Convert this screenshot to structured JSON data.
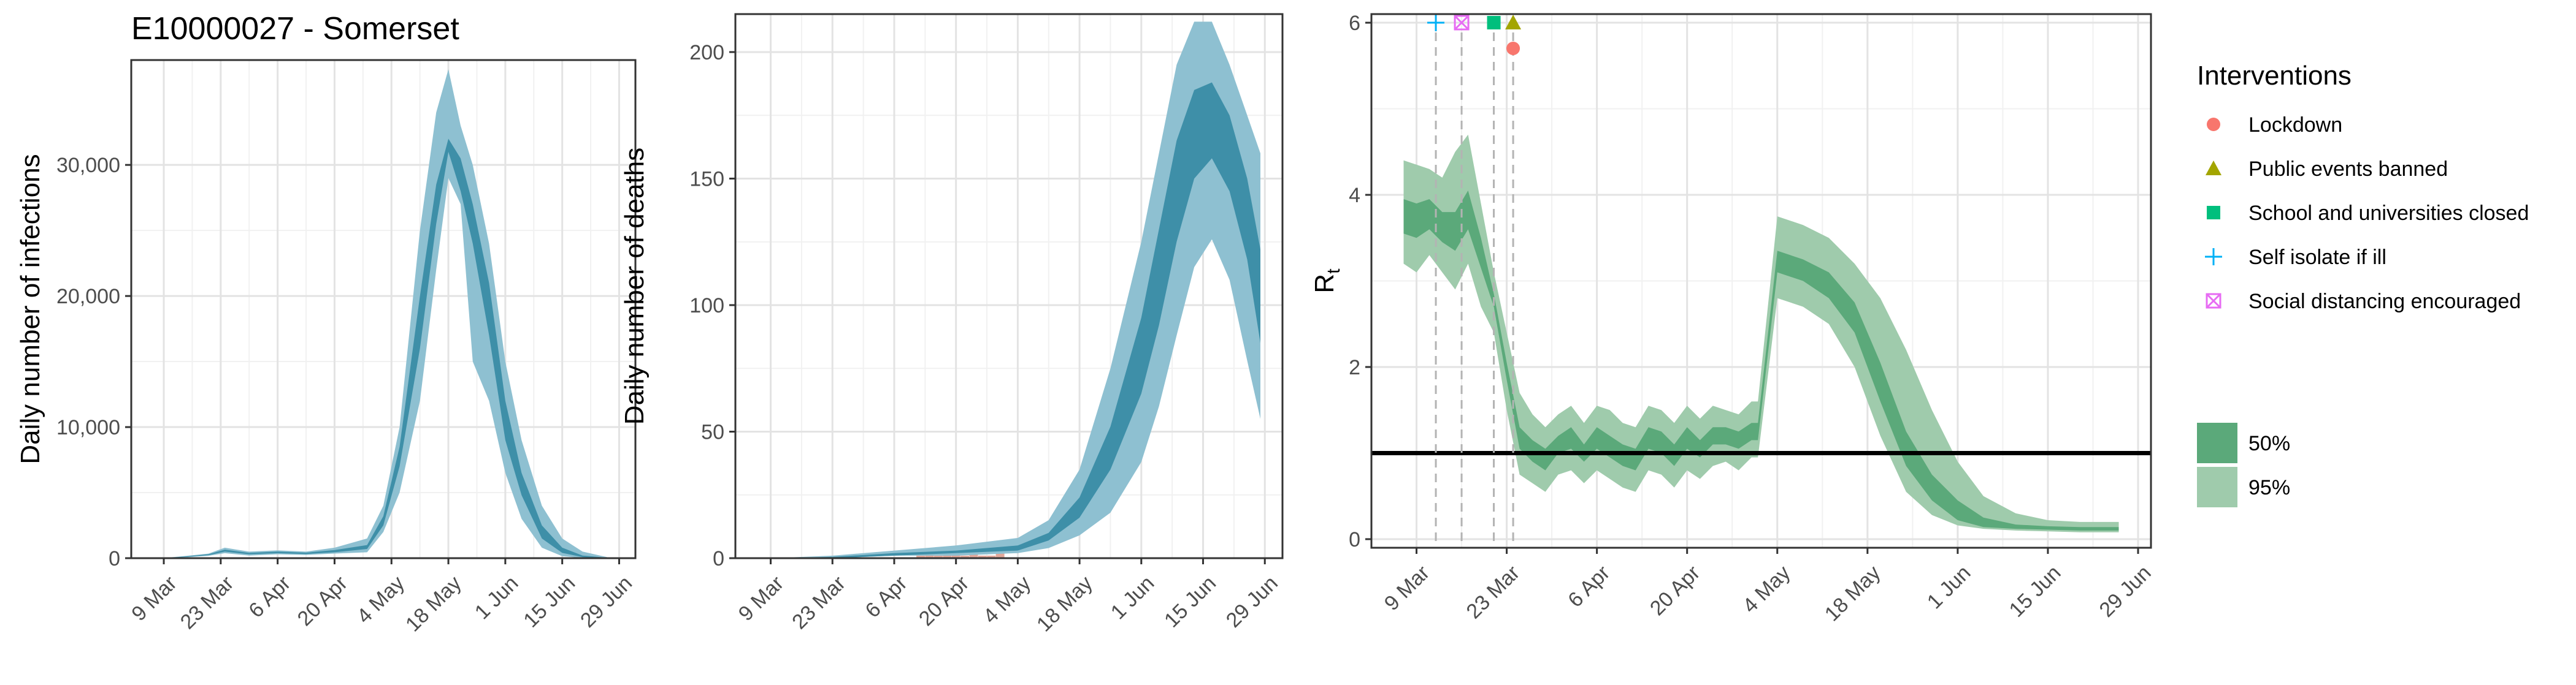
{
  "title": "E10000027 - Somerset",
  "colors": {
    "blue_95": "#8ec0d1",
    "blue_50": "#3e8fa8",
    "green_95": "#9fcbac",
    "green_50": "#5ba97a",
    "lockdown": "#f8766d",
    "public_events": "#a3a500",
    "schools": "#00bf7d",
    "self_isolate": "#00b0f6",
    "social_distancing": "#e76bf3",
    "observed_deaths_bar": "#e2a89a"
  },
  "chart_data": [
    {
      "type": "area",
      "ylabel": "Daily number of infections",
      "ylim": [
        0,
        38000
      ],
      "y_ticks": [
        0,
        10000,
        20000,
        30000
      ],
      "y_tick_labels": [
        "0",
        "10,000",
        "20,000",
        "30,000"
      ],
      "x_range": [
        "2020-03-01",
        "2020-07-03"
      ],
      "x_ticks": [
        "2020-03-09",
        "2020-03-23",
        "2020-04-06",
        "2020-04-20",
        "2020-05-04",
        "2020-05-18",
        "2020-06-01",
        "2020-06-15",
        "2020-06-29"
      ],
      "x_tick_labels": [
        "9 Mar",
        "23 Mar",
        "6 Apr",
        "20 Apr",
        "4 May",
        "18 May",
        "1 Jun",
        "15 Jun",
        "29 Jun"
      ],
      "grid": true,
      "series": [
        {
          "name": "95%",
          "x": [
            "2020-03-09",
            "2020-03-14",
            "2020-03-20",
            "2020-03-24",
            "2020-03-30",
            "2020-04-06",
            "2020-04-13",
            "2020-04-20",
            "2020-04-28",
            "2020-05-02",
            "2020-05-06",
            "2020-05-11",
            "2020-05-15",
            "2020-05-18",
            "2020-05-21",
            "2020-05-24",
            "2020-05-28",
            "2020-06-01",
            "2020-06-05",
            "2020-06-10",
            "2020-06-15",
            "2020-06-20",
            "2020-06-26"
          ],
          "lower": [
            0,
            50,
            180,
            380,
            200,
            300,
            250,
            350,
            450,
            2000,
            5000,
            12000,
            22000,
            29000,
            27000,
            15000,
            12000,
            6500,
            3000,
            800,
            150,
            20,
            0
          ],
          "upper": [
            20,
            160,
            350,
            800,
            500,
            600,
            500,
            800,
            1500,
            4000,
            10000,
            25000,
            34000,
            37300,
            33000,
            30000,
            24000,
            15000,
            9000,
            4000,
            1500,
            500,
            80
          ]
        },
        {
          "name": "50%",
          "x": [
            "2020-03-09",
            "2020-03-14",
            "2020-03-20",
            "2020-03-24",
            "2020-03-30",
            "2020-04-06",
            "2020-04-13",
            "2020-04-20",
            "2020-04-28",
            "2020-05-02",
            "2020-05-06",
            "2020-05-11",
            "2020-05-15",
            "2020-05-18",
            "2020-05-21",
            "2020-05-24",
            "2020-05-28",
            "2020-06-01",
            "2020-06-05",
            "2020-06-10",
            "2020-06-15",
            "2020-06-20",
            "2020-06-26"
          ],
          "lower": [
            5,
            80,
            230,
            500,
            300,
            380,
            320,
            450,
            700,
            2500,
            7000,
            16000,
            25500,
            31000,
            28000,
            24000,
            17000,
            9000,
            4800,
            1500,
            400,
            80,
            10
          ],
          "upper": [
            12,
            120,
            300,
            650,
            400,
            500,
            420,
            620,
            1000,
            3200,
            8500,
            20000,
            28500,
            32000,
            30500,
            27000,
            21000,
            12000,
            6500,
            2500,
            800,
            200,
            40
          ]
        }
      ]
    },
    {
      "type": "area",
      "ylabel": "Daily number of deaths",
      "ylim": [
        0,
        215
      ],
      "y_ticks": [
        0,
        50,
        100,
        150,
        200
      ],
      "y_tick_labels": [
        "0",
        "50",
        "100",
        "150",
        "200"
      ],
      "x_range": [
        "2020-03-01",
        "2020-07-03"
      ],
      "x_ticks": [
        "2020-03-09",
        "2020-03-23",
        "2020-04-06",
        "2020-04-20",
        "2020-05-04",
        "2020-05-18",
        "2020-06-01",
        "2020-06-15",
        "2020-06-29"
      ],
      "x_tick_labels": [
        "9 Mar",
        "23 Mar",
        "6 Apr",
        "20 Apr",
        "4 May",
        "18 May",
        "1 Jun",
        "15 Jun",
        "29 Jun"
      ],
      "grid": true,
      "observed": {
        "x": [
          "2020-04-12",
          "2020-04-14",
          "2020-04-16",
          "2020-04-18",
          "2020-04-20",
          "2020-04-22",
          "2020-04-24",
          "2020-04-26",
          "2020-04-28",
          "2020-04-30"
        ],
        "values": [
          1,
          2,
          1,
          2,
          2,
          1,
          2,
          1,
          1,
          2
        ]
      },
      "series": [
        {
          "name": "95%",
          "x": [
            "2020-03-09",
            "2020-03-23",
            "2020-04-06",
            "2020-04-20",
            "2020-05-04",
            "2020-05-11",
            "2020-05-18",
            "2020-05-25",
            "2020-06-01",
            "2020-06-05",
            "2020-06-09",
            "2020-06-13",
            "2020-06-17",
            "2020-06-21",
            "2020-06-25",
            "2020-06-28"
          ],
          "lower": [
            0,
            0,
            1,
            1,
            2,
            4,
            9,
            18,
            38,
            60,
            88,
            115,
            126,
            110,
            78,
            55
          ],
          "upper": [
            0,
            1,
            3,
            5,
            8,
            15,
            35,
            75,
            125,
            160,
            195,
            212,
            212,
            195,
            175,
            160
          ]
        },
        {
          "name": "50%",
          "x": [
            "2020-03-09",
            "2020-03-23",
            "2020-04-06",
            "2020-04-20",
            "2020-05-04",
            "2020-05-11",
            "2020-05-18",
            "2020-05-25",
            "2020-06-01",
            "2020-06-05",
            "2020-06-09",
            "2020-06-13",
            "2020-06-17",
            "2020-06-21",
            "2020-06-25",
            "2020-06-28"
          ],
          "lower": [
            0,
            0,
            1,
            2,
            3,
            7,
            16,
            35,
            65,
            92,
            125,
            150,
            158,
            145,
            118,
            85
          ],
          "upper": [
            0,
            0.5,
            2,
            3,
            5,
            10,
            24,
            52,
            95,
            130,
            165,
            185,
            188,
            175,
            150,
            122
          ]
        }
      ]
    },
    {
      "type": "area",
      "ylabel": "R",
      "ylabel_subscript": "t",
      "ylim": [
        -0.1,
        6.1
      ],
      "y_ticks": [
        0,
        2,
        4,
        6
      ],
      "y_tick_labels": [
        "0",
        "2",
        "4",
        "6"
      ],
      "x_range": [
        "2020-03-02",
        "2020-07-01"
      ],
      "x_ticks": [
        "2020-03-09",
        "2020-03-23",
        "2020-04-06",
        "2020-04-20",
        "2020-05-04",
        "2020-05-18",
        "2020-06-01",
        "2020-06-15",
        "2020-06-29"
      ],
      "x_tick_labels": [
        "9 Mar",
        "23 Mar",
        "6 Apr",
        "20 Apr",
        "4 May",
        "18 May",
        "1 Jun",
        "15 Jun",
        "29 Jun"
      ],
      "grid": true,
      "hline": 1,
      "series": [
        {
          "name": "95%",
          "x": [
            "2020-03-07",
            "2020-03-09",
            "2020-03-11",
            "2020-03-13",
            "2020-03-15",
            "2020-03-17",
            "2020-03-19",
            "2020-03-21",
            "2020-03-23",
            "2020-03-25",
            "2020-03-27",
            "2020-03-29",
            "2020-03-31",
            "2020-04-02",
            "2020-04-04",
            "2020-04-06",
            "2020-04-08",
            "2020-04-10",
            "2020-04-12",
            "2020-04-14",
            "2020-04-16",
            "2020-04-18",
            "2020-04-20",
            "2020-04-22",
            "2020-04-24",
            "2020-04-26",
            "2020-04-28",
            "2020-04-30",
            "2020-05-01",
            "2020-05-04",
            "2020-05-08",
            "2020-05-12",
            "2020-05-16",
            "2020-05-20",
            "2020-05-24",
            "2020-05-28",
            "2020-06-01",
            "2020-06-05",
            "2020-06-10",
            "2020-06-15",
            "2020-06-20",
            "2020-06-26"
          ],
          "lower": [
            3.2,
            3.1,
            3.3,
            3.1,
            2.9,
            3.2,
            2.7,
            2.4,
            1.5,
            0.75,
            0.65,
            0.55,
            0.75,
            0.8,
            0.65,
            0.8,
            0.7,
            0.6,
            0.55,
            0.8,
            0.75,
            0.6,
            0.8,
            0.7,
            0.85,
            0.9,
            0.8,
            0.95,
            0.95,
            2.8,
            2.7,
            2.5,
            2.0,
            1.2,
            0.55,
            0.28,
            0.16,
            0.12,
            0.1,
            0.09,
            0.08,
            0.08
          ],
          "upper": [
            4.4,
            4.35,
            4.3,
            4.2,
            4.5,
            4.7,
            3.9,
            3.1,
            2.4,
            1.7,
            1.45,
            1.3,
            1.45,
            1.55,
            1.35,
            1.55,
            1.5,
            1.35,
            1.3,
            1.55,
            1.5,
            1.35,
            1.55,
            1.4,
            1.55,
            1.5,
            1.45,
            1.6,
            1.6,
            3.75,
            3.65,
            3.5,
            3.2,
            2.8,
            2.2,
            1.5,
            0.9,
            0.5,
            0.3,
            0.22,
            0.2,
            0.2
          ]
        },
        {
          "name": "50%",
          "x": [
            "2020-03-07",
            "2020-03-09",
            "2020-03-11",
            "2020-03-13",
            "2020-03-15",
            "2020-03-17",
            "2020-03-19",
            "2020-03-21",
            "2020-03-23",
            "2020-03-25",
            "2020-03-27",
            "2020-03-29",
            "2020-03-31",
            "2020-04-02",
            "2020-04-04",
            "2020-04-06",
            "2020-04-08",
            "2020-04-10",
            "2020-04-12",
            "2020-04-14",
            "2020-04-16",
            "2020-04-18",
            "2020-04-20",
            "2020-04-22",
            "2020-04-24",
            "2020-04-26",
            "2020-04-28",
            "2020-04-30",
            "2020-05-01",
            "2020-05-04",
            "2020-05-08",
            "2020-05-12",
            "2020-05-16",
            "2020-05-20",
            "2020-05-24",
            "2020-05-28",
            "2020-06-01",
            "2020-06-05",
            "2020-06-10",
            "2020-06-15",
            "2020-06-20",
            "2020-06-26"
          ],
          "lower": [
            3.55,
            3.5,
            3.6,
            3.45,
            3.35,
            3.6,
            3.15,
            2.7,
            1.85,
            1.05,
            0.9,
            0.8,
            1.0,
            1.05,
            0.9,
            1.05,
            0.95,
            0.85,
            0.8,
            1.05,
            1.0,
            0.85,
            1.05,
            0.95,
            1.1,
            1.1,
            1.05,
            1.15,
            1.15,
            3.1,
            3.0,
            2.8,
            2.4,
            1.6,
            0.85,
            0.45,
            0.22,
            0.14,
            0.12,
            0.11,
            0.1,
            0.1
          ],
          "upper": [
            3.95,
            3.9,
            3.95,
            3.8,
            3.8,
            4.05,
            3.5,
            2.85,
            2.05,
            1.3,
            1.15,
            1.05,
            1.2,
            1.3,
            1.1,
            1.3,
            1.2,
            1.1,
            1.05,
            1.3,
            1.25,
            1.1,
            1.3,
            1.15,
            1.3,
            1.3,
            1.25,
            1.35,
            1.35,
            3.35,
            3.25,
            3.1,
            2.75,
            2.05,
            1.25,
            0.75,
            0.45,
            0.25,
            0.17,
            0.15,
            0.14,
            0.14
          ]
        }
      ],
      "interventions": [
        {
          "name": "Self isolate if ill",
          "date": "2020-03-12",
          "symbol": "plus",
          "color": "#00b0f6",
          "level": 0
        },
        {
          "name": "Social distancing encouraged",
          "date": "2020-03-16",
          "symbol": "boxx",
          "color": "#e76bf3",
          "level": 0
        },
        {
          "name": "School and universities closed",
          "date": "2020-03-21",
          "symbol": "square",
          "color": "#00bf7d",
          "level": 0
        },
        {
          "name": "Public events banned",
          "date": "2020-03-24",
          "symbol": "triangle",
          "color": "#a3a500",
          "level": 0
        },
        {
          "name": "Lockdown",
          "date": "2020-03-24",
          "symbol": "circle",
          "color": "#f8766d",
          "level": 1
        }
      ]
    }
  ],
  "legend": {
    "title": "Interventions",
    "items": [
      {
        "label": "Lockdown",
        "symbol": "circle",
        "color": "#f8766d"
      },
      {
        "label": "Public events banned",
        "symbol": "triangle",
        "color": "#a3a500"
      },
      {
        "label": "School and universities closed",
        "symbol": "square",
        "color": "#00bf7d"
      },
      {
        "label": "Self isolate if ill",
        "symbol": "plus",
        "color": "#00b0f6"
      },
      {
        "label": "Social distancing encouraged",
        "symbol": "boxx",
        "color": "#e76bf3"
      }
    ],
    "ci_items": [
      {
        "label": "50%",
        "color": "#5ba97a"
      },
      {
        "label": "95%",
        "color": "#9fcbac"
      }
    ]
  }
}
